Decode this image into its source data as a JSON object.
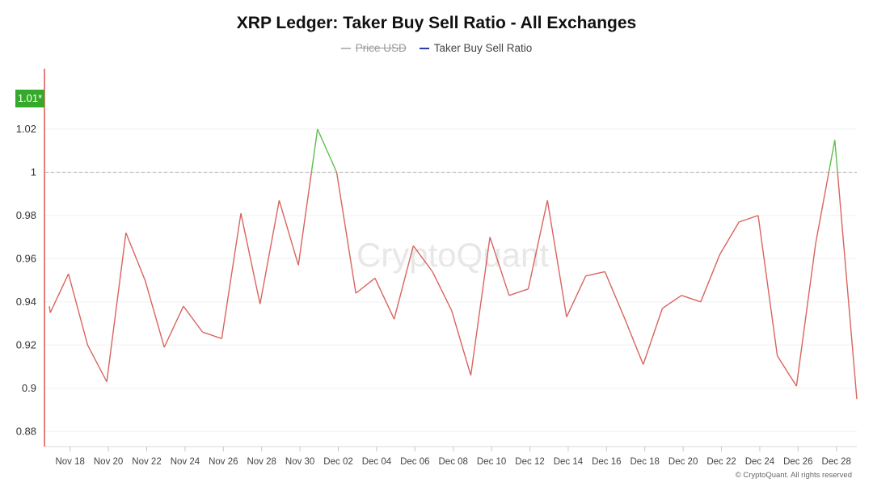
{
  "colors": {
    "price_series": "#b8b8b8",
    "ratio_series": "#2f3e9e",
    "line_below": "#d9645f",
    "line_above": "#5cc04a",
    "badge_bg": "#35a92a",
    "axis_left": "#e05555"
  },
  "badge": {
    "label": "1.01*"
  },
  "copyright": "© CryptoQuant. All rights reserved",
  "watermark": "CryptoQuant",
  "chart_data": {
    "type": "line",
    "title": "XRP Ledger: Taker Buy Sell Ratio - All Exchanges",
    "legend": {
      "placement": "top-center",
      "items": [
        {
          "label": "Price USD",
          "hidden": true,
          "color": "#b8b8b8"
        },
        {
          "label": "Taker Buy Sell Ratio",
          "hidden": false,
          "color": "#2f3e9e"
        }
      ]
    },
    "x_ticks": [
      "Nov 18",
      "Nov 20",
      "Nov 22",
      "Nov 24",
      "Nov 26",
      "Nov 28",
      "Nov 30",
      "Dec 02",
      "Dec 04",
      "Dec 06",
      "Dec 08",
      "Dec 10",
      "Dec 12",
      "Dec 14",
      "Dec 16",
      "Dec 18",
      "Dec 20",
      "Dec 22",
      "Dec 24",
      "Dec 26",
      "Dec 28"
    ],
    "y_ticks": [
      "0.88",
      "0.9",
      "0.92",
      "0.94",
      "0.96",
      "0.98",
      "1",
      "1.02"
    ],
    "ylim": [
      0.873,
      1.048
    ],
    "reference_line": 1.0,
    "grid": true,
    "series": [
      {
        "name": "Taker Buy Sell Ratio",
        "x": [
          "Nov 17",
          "Nov 17",
          "Nov 18",
          "Nov 19",
          "Nov 20",
          "Nov 21",
          "Nov 22",
          "Nov 23",
          "Nov 24",
          "Nov 25",
          "Nov 26",
          "Nov 27",
          "Nov 28",
          "Nov 29",
          "Nov 30",
          "Dec 01",
          "Dec 02",
          "Dec 03",
          "Dec 04",
          "Dec 05",
          "Dec 06",
          "Dec 07",
          "Dec 08",
          "Dec 09",
          "Dec 10",
          "Dec 11",
          "Dec 12",
          "Dec 13",
          "Dec 14",
          "Dec 15",
          "Dec 16",
          "Dec 17",
          "Dec 18",
          "Dec 19",
          "Dec 20",
          "Dec 21",
          "Dec 22",
          "Dec 23",
          "Dec 24",
          "Dec 25",
          "Dec 26",
          "Dec 27",
          "Dec 28",
          "Dec 29"
        ],
        "values": [
          0.938,
          0.935,
          0.953,
          0.92,
          0.903,
          0.972,
          0.95,
          0.919,
          0.938,
          0.926,
          0.923,
          0.981,
          0.939,
          0.987,
          0.957,
          1.02,
          1.0,
          0.944,
          0.951,
          0.932,
          0.966,
          0.954,
          0.936,
          0.906,
          0.97,
          0.943,
          0.946,
          0.987,
          0.933,
          0.952,
          0.954,
          0.933,
          0.911,
          0.937,
          0.943,
          0.94,
          0.962,
          0.977,
          0.98,
          0.915,
          0.901,
          0.967,
          1.015,
          0.895
        ]
      }
    ]
  }
}
